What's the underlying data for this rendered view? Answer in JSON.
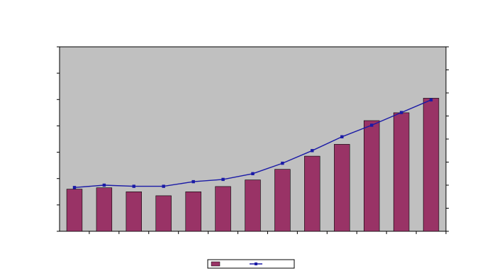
{
  "chart_data": {
    "type": "bar",
    "title": "",
    "subtitle": "",
    "xlabel": "",
    "ylabel": "",
    "y2label": "",
    "categories": [
      "",
      "",
      "",
      "",
      "",
      "",
      "",
      "",
      "",
      "",
      "",
      "",
      ""
    ],
    "left_ticks": [
      "",
      "",
      "",
      "",
      "",
      "",
      "",
      ""
    ],
    "right_ticks": [
      "",
      "",
      "",
      "",
      "",
      "",
      "",
      "",
      ""
    ],
    "ylim": [
      0,
      7
    ],
    "y2lim": [
      0,
      8
    ],
    "series": [
      {
        "axis": "left",
        "kind": "bar",
        "color": "#993366",
        "values": [
          1.6,
          1.65,
          1.5,
          1.35,
          1.5,
          1.7,
          1.95,
          2.35,
          2.85,
          3.3,
          4.2,
          4.5,
          5.05
        ]
      },
      {
        "axis": "right",
        "kind": "line",
        "color": "#1a1aa6",
        "values": [
          1.9,
          2.0,
          1.95,
          1.95,
          2.15,
          2.25,
          2.5,
          2.95,
          3.5,
          4.1,
          4.6,
          5.15,
          5.7
        ]
      }
    ],
    "grid": false,
    "legend": "bottom-center",
    "plot_background": "#c0c0c0"
  }
}
